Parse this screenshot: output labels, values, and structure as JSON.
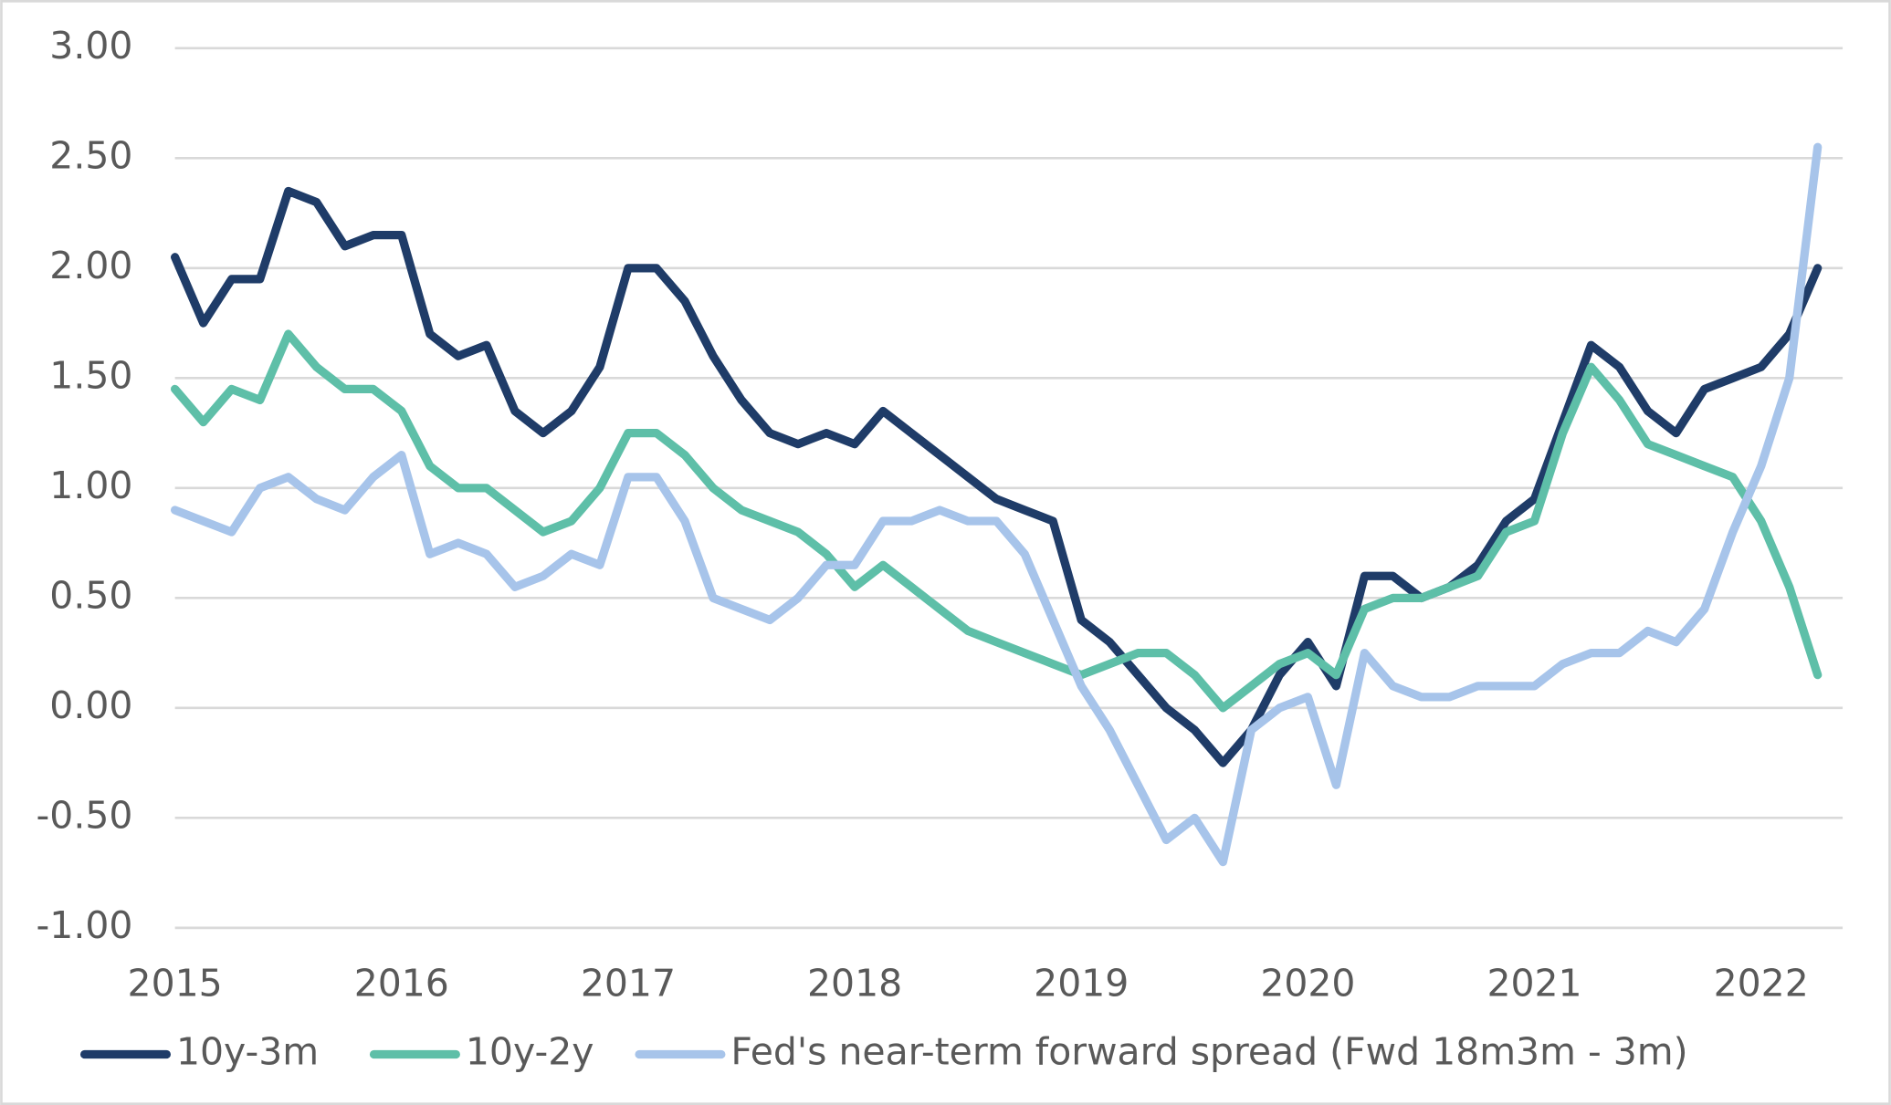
{
  "chart_data": {
    "type": "line",
    "x": [
      2015,
      2015.125,
      2015.25,
      2015.375,
      2015.5,
      2015.625,
      2015.75,
      2015.875,
      2016,
      2016.125,
      2016.25,
      2016.375,
      2016.5,
      2016.625,
      2016.75,
      2016.875,
      2017,
      2017.125,
      2017.25,
      2017.375,
      2017.5,
      2017.625,
      2017.75,
      2017.875,
      2018,
      2018.125,
      2018.25,
      2018.375,
      2018.5,
      2018.625,
      2018.75,
      2018.875,
      2019,
      2019.125,
      2019.25,
      2019.375,
      2019.5,
      2019.625,
      2019.75,
      2019.875,
      2020,
      2020.125,
      2020.25,
      2020.375,
      2020.5,
      2020.625,
      2020.75,
      2020.875,
      2021,
      2021.125,
      2021.25,
      2021.375,
      2021.5,
      2021.625,
      2021.75,
      2021.875,
      2022,
      2022.125,
      2022.25
    ],
    "series": [
      {
        "name": "10y-3m",
        "color": "#1f3c68",
        "values": [
          2.05,
          1.75,
          1.95,
          1.95,
          2.35,
          2.3,
          2.1,
          2.15,
          2.15,
          1.7,
          1.6,
          1.65,
          1.35,
          1.25,
          1.35,
          1.55,
          2.0,
          2.0,
          1.85,
          1.6,
          1.4,
          1.25,
          1.2,
          1.25,
          1.2,
          1.35,
          1.25,
          1.15,
          1.05,
          0.95,
          0.9,
          0.85,
          0.4,
          0.3,
          0.15,
          0.0,
          -0.1,
          -0.25,
          -0.1,
          0.15,
          0.3,
          0.1,
          0.6,
          0.6,
          0.5,
          0.55,
          0.65,
          0.85,
          0.95,
          1.3,
          1.65,
          1.55,
          1.35,
          1.25,
          1.45,
          1.5,
          1.55,
          1.7,
          2.0
        ]
      },
      {
        "name": "10y-2y",
        "color": "#5ebfa8",
        "values": [
          1.45,
          1.3,
          1.45,
          1.4,
          1.7,
          1.55,
          1.45,
          1.45,
          1.35,
          1.1,
          1.0,
          1.0,
          0.9,
          0.8,
          0.85,
          1.0,
          1.25,
          1.25,
          1.15,
          1.0,
          0.9,
          0.85,
          0.8,
          0.7,
          0.55,
          0.65,
          0.55,
          0.45,
          0.35,
          0.3,
          0.25,
          0.2,
          0.15,
          0.2,
          0.25,
          0.25,
          0.15,
          0.0,
          0.1,
          0.2,
          0.25,
          0.15,
          0.45,
          0.5,
          0.5,
          0.55,
          0.6,
          0.8,
          0.85,
          1.25,
          1.55,
          1.4,
          1.2,
          1.15,
          1.1,
          1.05,
          0.85,
          0.55,
          0.15
        ]
      },
      {
        "name": "Fed's near-term forward spread (Fwd 18m3m - 3m)",
        "color": "#a7c4ea",
        "values": [
          0.9,
          0.85,
          0.8,
          1.0,
          1.05,
          0.95,
          0.9,
          1.05,
          1.15,
          0.7,
          0.75,
          0.7,
          0.55,
          0.6,
          0.7,
          0.65,
          1.05,
          1.05,
          0.85,
          0.5,
          0.45,
          0.4,
          0.5,
          0.65,
          0.65,
          0.85,
          0.85,
          0.9,
          0.85,
          0.85,
          0.7,
          0.4,
          0.1,
          -0.1,
          -0.35,
          -0.6,
          -0.5,
          -0.7,
          -0.1,
          0.0,
          0.05,
          -0.35,
          0.25,
          0.1,
          0.05,
          0.05,
          0.1,
          0.1,
          0.1,
          0.2,
          0.25,
          0.25,
          0.35,
          0.3,
          0.45,
          0.8,
          1.1,
          1.5,
          2.55
        ]
      }
    ],
    "xlim": [
      2015,
      2022.36
    ],
    "xticks": [
      2015,
      2016,
      2017,
      2018,
      2019,
      2020,
      2021,
      2022
    ],
    "ylim": [
      -1,
      3
    ],
    "yticks": [
      {
        "value": -1,
        "label": "-1.00"
      },
      {
        "value": -0.5,
        "label": "-0.50"
      },
      {
        "value": 0,
        "label": "0.00"
      },
      {
        "value": 0.5,
        "label": "0.50"
      },
      {
        "value": 1,
        "label": "1.00"
      },
      {
        "value": 1.5,
        "label": "1.50"
      },
      {
        "value": 2,
        "label": "2.00"
      },
      {
        "value": 2.5,
        "label": "2.50"
      },
      {
        "value": 3,
        "label": "3.00"
      }
    ],
    "grid": true,
    "legend": "bottom"
  }
}
